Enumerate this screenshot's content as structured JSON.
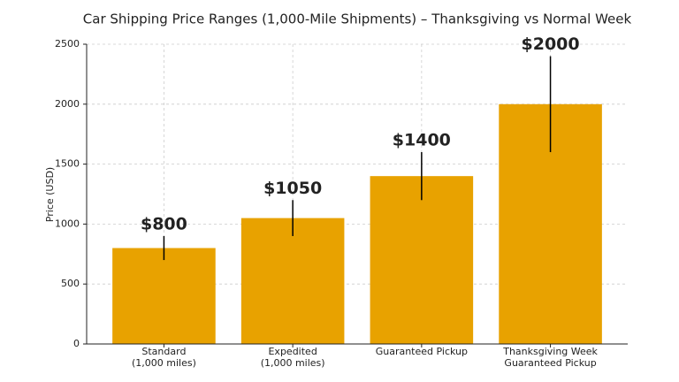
{
  "chart_data": {
    "type": "bar",
    "title": "Car Shipping Price Ranges (1,000-Mile Shipments) – Thanksgiving vs Normal Week",
    "y_label": "Price (USD)",
    "categories": [
      "Standard\n(1,000 miles)",
      "Expedited\n(1,000 miles)",
      "Guaranteed Pickup",
      "Thanksgiving Week\nGuaranteed Pickup"
    ],
    "values": [
      800,
      1050,
      1400,
      2000
    ],
    "value_labels": [
      "$800",
      "$1050",
      "$1400",
      "$2000"
    ],
    "errors": [
      100,
      150,
      200,
      400
    ],
    "color": "#e8a200",
    "ylim": [
      0,
      2500
    ],
    "yticks": [
      0,
      500,
      1000,
      1500,
      2000,
      2500
    ],
    "grid": true
  }
}
